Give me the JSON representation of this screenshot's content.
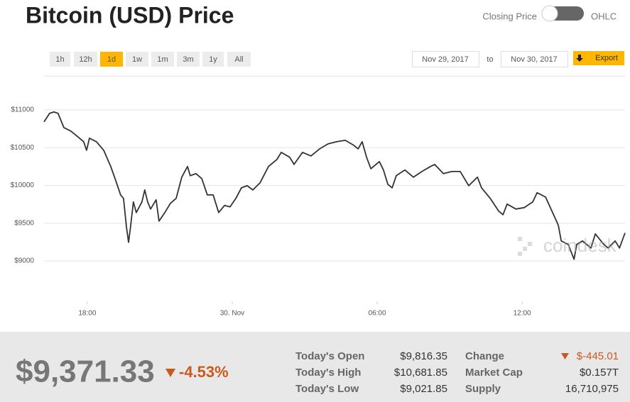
{
  "header": {
    "title": "Bitcoin (USD) Price",
    "toggle_left": "Closing Price",
    "toggle_right": "OHLC"
  },
  "range_buttons": [
    {
      "label": "1h",
      "active": false
    },
    {
      "label": "12h",
      "active": false
    },
    {
      "label": "1d",
      "active": true
    },
    {
      "label": "1w",
      "active": false
    },
    {
      "label": "1m",
      "active": false
    },
    {
      "label": "3m",
      "active": false
    },
    {
      "label": "1y",
      "active": false
    },
    {
      "label": "All",
      "active": false
    }
  ],
  "date_range": {
    "from": "Nov 29, 2017",
    "to_label": "to",
    "to": "Nov 30, 2017",
    "export": "Export"
  },
  "chart_data": {
    "type": "line",
    "color": "#333333",
    "grid": true,
    "x": [
      16.21,
      16.44,
      16.62,
      16.79,
      17.03,
      17.32,
      17.68,
      17.85,
      17.97,
      18.09,
      18.38,
      18.68,
      18.97,
      19.15,
      19.38,
      19.5,
      19.62,
      19.71,
      19.79,
      19.91,
      20.03,
      20.26,
      20.38,
      20.5,
      20.62,
      20.85,
      20.97,
      21.21,
      21.44,
      21.68,
      21.91,
      22.15,
      22.26,
      22.5,
      22.74,
      22.97,
      23.21,
      23.44,
      23.68,
      23.91,
      24.15,
      24.38,
      24.62,
      24.85,
      25.15,
      25.5,
      25.85,
      26.03,
      26.38,
      26.56,
      26.91,
      27.26,
      27.62,
      27.97,
      28.32,
      28.68,
      29.03,
      29.21,
      29.38,
      29.56,
      29.74,
      30.09,
      30.26,
      30.44,
      30.62,
      30.79,
      31.15,
      31.5,
      31.85,
      32.21,
      32.38,
      32.74,
      33.09,
      33.44,
      33.79,
      34.15,
      34.32,
      34.68,
      35.03,
      35.21,
      35.38,
      35.74,
      36.09,
      36.44,
      36.62,
      36.97,
      37.26,
      37.5,
      37.62,
      37.91,
      38.15,
      38.26,
      38.5,
      38.85,
      39.03,
      39.38,
      39.56,
      39.85,
      40.03,
      40.26
    ],
    "values": [
      10841,
      10953,
      10972,
      10953,
      10766,
      10719,
      10625,
      10578,
      10465,
      10625,
      10578,
      10465,
      10250,
      10090,
      9874,
      9828,
      9452,
      9246,
      9452,
      9781,
      9640,
      9781,
      9940,
      9781,
      9687,
      9809,
      9527,
      9640,
      9762,
      9828,
      10109,
      10250,
      10128,
      10156,
      10090,
      9874,
      9874,
      9640,
      9734,
      9715,
      9828,
      9968,
      9996,
      9940,
      10034,
      10250,
      10343,
      10437,
      10372,
      10278,
      10437,
      10390,
      10484,
      10550,
      10578,
      10597,
      10531,
      10484,
      10578,
      10372,
      10221,
      10315,
      10203,
      10015,
      9968,
      10128,
      10203,
      10109,
      10184,
      10250,
      10278,
      10156,
      10184,
      10184,
      9996,
      10109,
      9968,
      9828,
      9659,
      9612,
      9753,
      9687,
      9706,
      9781,
      9903,
      9846,
      9640,
      9471,
      9265,
      9218,
      9022,
      9218,
      9265,
      9171,
      9358,
      9218,
      9171,
      9265,
      9171,
      9371
    ],
    "xlim": [
      16.21,
      40.26
    ],
    "ylim": [
      8465,
      11450
    ],
    "xticks": [
      {
        "value": 18,
        "label": "18:00"
      },
      {
        "value": 24,
        "label": "30. Nov"
      },
      {
        "value": 30,
        "label": "06:00"
      },
      {
        "value": 36,
        "label": "12:00"
      }
    ],
    "yticks": [
      {
        "value": 9000,
        "label": "$9000"
      },
      {
        "value": 9500,
        "label": "$9500"
      },
      {
        "value": 10000,
        "label": "$10000"
      },
      {
        "value": 10500,
        "label": "$10500"
      },
      {
        "value": 11000,
        "label": "$11000"
      }
    ]
  },
  "watermark": "coindesk",
  "summary": {
    "price": "$9,371.33",
    "change": "-4.53%"
  },
  "stats": [
    [
      {
        "label": "Today's Open",
        "value": "$9,816.35"
      },
      {
        "label": "Change",
        "value": "$-445.01"
      }
    ],
    [
      {
        "label": "Today's High",
        "value": "$10,681.85"
      },
      {
        "label": "Market Cap",
        "value": "$0.157T"
      }
    ],
    [
      {
        "label": "Today's Low",
        "value": "$9,021.85"
      },
      {
        "label": "Supply",
        "value": "16,710,975"
      }
    ]
  ]
}
